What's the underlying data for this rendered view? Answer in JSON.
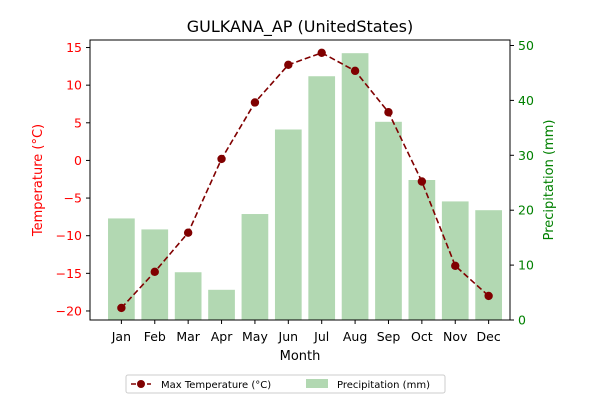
{
  "chart_data": {
    "type": "bar+line",
    "title": "GULKANA_AP (UnitedStates)",
    "xlabel": "Month",
    "categories": [
      "Jan",
      "Feb",
      "Mar",
      "Apr",
      "May",
      "Jun",
      "Jul",
      "Aug",
      "Sep",
      "Oct",
      "Nov",
      "Dec"
    ],
    "left_axis": {
      "label": "Temperature (°C)",
      "range": [
        -21.2,
        16.0
      ],
      "ticks": [
        -20,
        -15,
        -10,
        -5,
        0,
        5,
        10,
        15
      ],
      "color": "#ff0000"
    },
    "right_axis": {
      "label": "Precipitation (mm)",
      "range": [
        0,
        51
      ],
      "ticks": [
        0,
        10,
        20,
        30,
        40,
        50
      ],
      "color": "#008000"
    },
    "series": [
      {
        "name": "Max Temperature (°C)",
        "type": "line",
        "axis": "left",
        "color": "#800000",
        "line_style": "dashed",
        "marker": "circle",
        "values": [
          -19.6,
          -14.8,
          -9.6,
          0.2,
          7.7,
          12.7,
          14.3,
          11.9,
          6.4,
          -2.8,
          -14.0,
          -18.0
        ]
      },
      {
        "name": "Precipitation (mm)",
        "type": "bar",
        "axis": "right",
        "color": "#b2d8b2",
        "values": [
          18.5,
          16.5,
          8.7,
          5.5,
          19.3,
          34.7,
          44.4,
          48.6,
          36.1,
          25.5,
          21.6,
          20.0
        ]
      }
    ],
    "legend": {
      "placement": "bottom-center",
      "columns": 2
    },
    "grid": false
  }
}
